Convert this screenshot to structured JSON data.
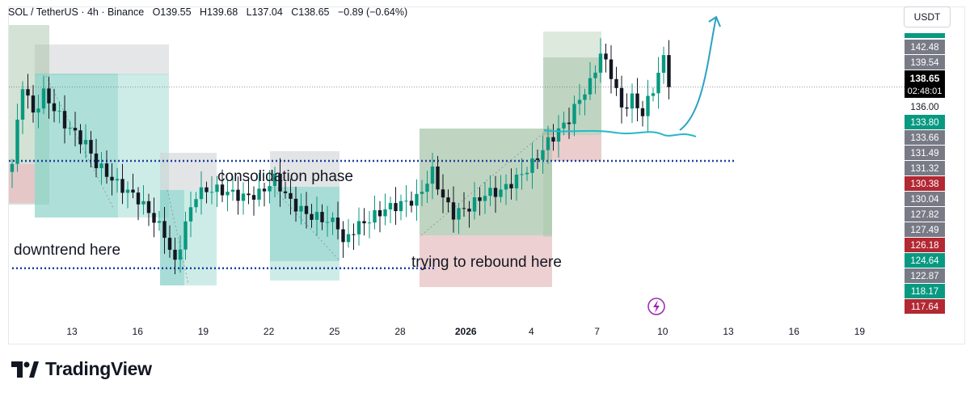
{
  "header": {
    "symbol": "SOL / TetherUS · 4h · Binance",
    "open": "O139.55",
    "high": "H139.68",
    "low": "L137.04",
    "close": "C138.65",
    "change": "−0.89 (−0.64%)"
  },
  "currency_button": "USDT",
  "brand": "TradingView",
  "annotations": {
    "downtrend": "downtrend here",
    "consolidation": "consolidation phase",
    "rebound": "trying to rebound here"
  },
  "colors": {
    "up": "#089981",
    "down": "#131722",
    "teal_box": "#82cfc4",
    "green_box": "#9dbf9f",
    "red_box": "#e8c4c6",
    "gray_box": "#cfd2d6",
    "dotted": "#1e3f9e",
    "curve": "#29b6c8",
    "arrow": "#2aa3c4"
  },
  "chart_data": {
    "type": "candlestick",
    "title": "SOL / TetherUS · 4h · Binance",
    "ylabel": "USDT",
    "ylim": [
      115.5,
      145
    ],
    "x_ticks": [
      "13",
      "16",
      "19",
      "22",
      "25",
      "28",
      "2026",
      "4",
      "7",
      "10",
      "13",
      "16",
      "19"
    ],
    "price_labels": [
      {
        "value": "142.48",
        "style": "gray"
      },
      {
        "value": "139.54",
        "style": "gray"
      },
      {
        "value": "136.00",
        "style": "plain"
      },
      {
        "value": "133.80",
        "style": "green"
      },
      {
        "value": "133.66",
        "style": "gray"
      },
      {
        "value": "131.49",
        "style": "gray"
      },
      {
        "value": "131.32",
        "style": "gray"
      },
      {
        "value": "130.38",
        "style": "red"
      },
      {
        "value": "130.04",
        "style": "gray"
      },
      {
        "value": "127.82",
        "style": "gray"
      },
      {
        "value": "127.49",
        "style": "gray"
      },
      {
        "value": "126.18",
        "style": "red"
      },
      {
        "value": "124.64",
        "style": "green"
      },
      {
        "value": "122.87",
        "style": "gray"
      },
      {
        "value": "118.17",
        "style": "green"
      },
      {
        "value": "117.64",
        "style": "red"
      }
    ],
    "last_price": {
      "value": "138.65",
      "countdown": "02:48:01"
    },
    "levels": [
      {
        "name": "last-price-line",
        "value": 138.65
      },
      {
        "name": "support-dotted-upper",
        "value": 131.3
      },
      {
        "name": "support-dotted-lower",
        "value": 120.6
      }
    ],
    "waypoints": [
      [
        0,
        131
      ],
      [
        2,
        139
      ],
      [
        4,
        136
      ],
      [
        6,
        138
      ],
      [
        10,
        135
      ],
      [
        14,
        133
      ],
      [
        16,
        131
      ],
      [
        20,
        129
      ],
      [
        24,
        127.5
      ],
      [
        27,
        125.5
      ],
      [
        29,
        124
      ],
      [
        31,
        121
      ],
      [
        33,
        125
      ],
      [
        35,
        128
      ],
      [
        38,
        128.5
      ],
      [
        41,
        128.2
      ],
      [
        44,
        127.7
      ],
      [
        47,
        128
      ],
      [
        50,
        129.5
      ],
      [
        53,
        127.2
      ],
      [
        56,
        126
      ],
      [
        59,
        125.5
      ],
      [
        62,
        125
      ],
      [
        63,
        123
      ],
      [
        65,
        124.5
      ],
      [
        68,
        125.5
      ],
      [
        71,
        126.5
      ],
      [
        74,
        127
      ],
      [
        77,
        127.5
      ],
      [
        80,
        130.2
      ],
      [
        82,
        127.6
      ],
      [
        84,
        126
      ],
      [
        87,
        126.7
      ],
      [
        90,
        128
      ],
      [
        93,
        128.3
      ],
      [
        96,
        129.5
      ],
      [
        99,
        131
      ],
      [
        102,
        133.2
      ],
      [
        104,
        134.3
      ],
      [
        106,
        135.5
      ],
      [
        108,
        137.5
      ],
      [
        110,
        139
      ],
      [
        112,
        142
      ],
      [
        114,
        140
      ],
      [
        116,
        136.5
      ],
      [
        118,
        137.5
      ],
      [
        120,
        136
      ],
      [
        122,
        138.5
      ],
      [
        124,
        141.5
      ],
      [
        125,
        138.65
      ]
    ]
  }
}
